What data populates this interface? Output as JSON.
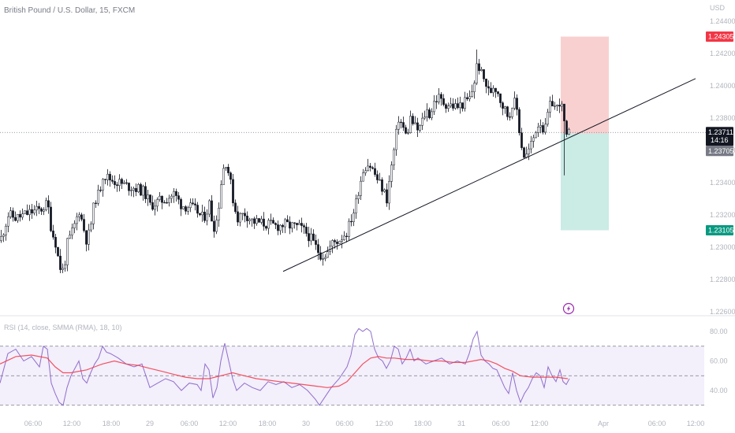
{
  "header": {
    "symbol_title": "British Pound / U.S. Dollar, 15, FXCM",
    "currency": "USD"
  },
  "rsi_header": "RSI (14, close, SMMA (RMA), 18, 10)",
  "price_tags": {
    "stop": "1.24305",
    "last": "1.23711",
    "countdown": "14:16",
    "entry": "1.23705",
    "target": "1.23105"
  },
  "colors": {
    "stop_tag": "#f23645",
    "target_tag": "#089981",
    "last_tag": "#131722",
    "entry_tag": "#787b86",
    "stop_zone": "#f8c8c8",
    "target_zone": "#c2e8e0",
    "rsi_line": "#7e57c2",
    "rsi_ma": "#f23645",
    "rsi_band": "#efeafa",
    "trendline": "#131722",
    "candle": "#131722",
    "axis_text": "#b2b5be",
    "lightning": "#9c27b0"
  },
  "icons": {
    "event": "lightning-icon"
  },
  "chart_data": [
    {
      "type": "candlestick",
      "title": "British Pound / U.S. Dollar, 15, FXCM",
      "ylabel": "USD",
      "ylim": [
        1.226,
        1.2445
      ],
      "y_ticks": [
        "1.24400",
        "1.24200",
        "1.24000",
        "1.23800",
        "1.23600",
        "1.23400",
        "1.23200",
        "1.23000",
        "1.22800",
        "1.22600"
      ],
      "x_ticks": [
        "06:00",
        "12:00",
        "18:00",
        "29",
        "06:00",
        "12:00",
        "18:00",
        "30",
        "06:00",
        "12:00",
        "18:00",
        "31",
        "06:00",
        "12:00",
        "Apr",
        "06:00",
        "12:00"
      ],
      "close_path": [
        [
          0,
          1.2304
        ],
        [
          10,
          1.232
        ],
        [
          20,
          1.2318
        ],
        [
          30,
          1.232
        ],
        [
          40,
          1.2322
        ],
        [
          50,
          1.2323
        ],
        [
          60,
          1.2327
        ],
        [
          65,
          1.231
        ],
        [
          70,
          1.2303
        ],
        [
          75,
          1.2288
        ],
        [
          80,
          1.2285
        ],
        [
          85,
          1.2302
        ],
        [
          90,
          1.2308
        ],
        [
          95,
          1.2315
        ],
        [
          100,
          1.2323
        ],
        [
          110,
          1.2303
        ],
        [
          115,
          1.2315
        ],
        [
          120,
          1.233
        ],
        [
          125,
          1.2333
        ],
        [
          130,
          1.2345
        ],
        [
          140,
          1.2342
        ],
        [
          150,
          1.234
        ],
        [
          160,
          1.2338
        ],
        [
          170,
          1.2337
        ],
        [
          180,
          1.2335
        ],
        [
          185,
          1.2332
        ],
        [
          190,
          1.2326
        ],
        [
          200,
          1.2328
        ],
        [
          210,
          1.233
        ],
        [
          220,
          1.2333
        ],
        [
          230,
          1.2326
        ],
        [
          240,
          1.2325
        ],
        [
          250,
          1.2322
        ],
        [
          255,
          1.2318
        ],
        [
          260,
          1.232
        ],
        [
          265,
          1.2327
        ],
        [
          270,
          1.2312
        ],
        [
          275,
          1.2318
        ],
        [
          280,
          1.234
        ],
        [
          285,
          1.2355
        ],
        [
          290,
          1.2345
        ],
        [
          295,
          1.233
        ],
        [
          300,
          1.2318
        ],
        [
          310,
          1.2321
        ],
        [
          320,
          1.2316
        ],
        [
          330,
          1.2315
        ],
        [
          340,
          1.2314
        ],
        [
          350,
          1.2313
        ],
        [
          360,
          1.2314
        ],
        [
          370,
          1.2313
        ],
        [
          380,
          1.2312
        ],
        [
          390,
          1.2308
        ],
        [
          400,
          1.23
        ],
        [
          405,
          1.2296
        ],
        [
          410,
          1.2295
        ],
        [
          415,
          1.2297
        ],
        [
          420,
          1.2302
        ],
        [
          430,
          1.2305
        ],
        [
          440,
          1.231
        ],
        [
          445,
          1.2318
        ],
        [
          450,
          1.2325
        ],
        [
          455,
          1.2338
        ],
        [
          460,
          1.2348
        ],
        [
          465,
          1.2352
        ],
        [
          470,
          1.235
        ],
        [
          475,
          1.2345
        ],
        [
          480,
          1.234
        ],
        [
          485,
          1.2336
        ],
        [
          490,
          1.233
        ],
        [
          495,
          1.2347
        ],
        [
          500,
          1.2363
        ],
        [
          505,
          1.238
        ],
        [
          510,
          1.2375
        ],
        [
          515,
          1.2368
        ],
        [
          520,
          1.238
        ],
        [
          525,
          1.2375
        ],
        [
          530,
          1.2372
        ],
        [
          535,
          1.2378
        ],
        [
          540,
          1.2385
        ],
        [
          545,
          1.2382
        ],
        [
          550,
          1.239
        ],
        [
          555,
          1.2393
        ],
        [
          560,
          1.239
        ],
        [
          570,
          1.2388
        ],
        [
          580,
          1.2387
        ],
        [
          590,
          1.239
        ],
        [
          595,
          1.2392
        ],
        [
          600,
          1.24
        ],
        [
          605,
          1.2415
        ],
        [
          610,
          1.2407
        ],
        [
          615,
          1.2402
        ],
        [
          620,
          1.2395
        ],
        [
          625,
          1.24
        ],
        [
          630,
          1.2398
        ],
        [
          635,
          1.239
        ],
        [
          640,
          1.2385
        ],
        [
          645,
          1.238
        ],
        [
          650,
          1.2392
        ],
        [
          655,
          1.2385
        ],
        [
          660,
          1.2365
        ],
        [
          665,
          1.2355
        ],
        [
          670,
          1.236
        ],
        [
          675,
          1.2366
        ],
        [
          680,
          1.2375
        ],
        [
          685,
          1.2378
        ],
        [
          690,
          1.237
        ],
        [
          695,
          1.2385
        ],
        [
          700,
          1.239
        ],
        [
          705,
          1.2385
        ],
        [
          710,
          1.2392
        ],
        [
          714,
          1.238
        ],
        [
          718,
          1.2367
        ],
        [
          722,
          1.2371
        ]
      ],
      "spikes": [
        {
          "x": 605,
          "high": 1.24225
        },
        {
          "x": 716,
          "low": 1.23445
        }
      ],
      "trendline": {
        "start": [
          359,
          1.2285
        ],
        "end": [
          882,
          1.24045
        ]
      },
      "last_price": 1.23711,
      "position": {
        "type": "short",
        "entry": 1.23705,
        "stop": 1.24305,
        "target": 1.23105,
        "x_start": 711,
        "x_end": 772
      }
    },
    {
      "type": "line",
      "title": "RSI (14, close, SMMA (RMA), 18, 10)",
      "ylim": [
        25,
        90
      ],
      "y_ticks": [
        "80.00",
        "60.00",
        "40.00"
      ],
      "bands": {
        "upper": 70,
        "middle": 50,
        "lower": 30
      },
      "series": [
        {
          "values": [
            [
              0,
              45
            ],
            [
              10,
              65
            ],
            [
              20,
              68
            ],
            [
              30,
              60
            ],
            [
              40,
              63
            ],
            [
              50,
              56
            ],
            [
              55,
              70
            ],
            [
              60,
              68
            ],
            [
              65,
              45
            ],
            [
              70,
              38
            ],
            [
              75,
              32
            ],
            [
              80,
              30
            ],
            [
              85,
              42
            ],
            [
              90,
              50
            ],
            [
              95,
              55
            ],
            [
              100,
              60
            ],
            [
              105,
              48
            ],
            [
              110,
              45
            ],
            [
              115,
              52
            ],
            [
              120,
              58
            ],
            [
              125,
              62
            ],
            [
              130,
              70
            ],
            [
              135,
              66
            ],
            [
              140,
              65
            ],
            [
              150,
              62
            ],
            [
              160,
              58
            ],
            [
              170,
              56
            ],
            [
              180,
              58
            ],
            [
              190,
              42
            ],
            [
              200,
              45
            ],
            [
              210,
              48
            ],
            [
              220,
              46
            ],
            [
              230,
              40
            ],
            [
              240,
              45
            ],
            [
              250,
              44
            ],
            [
              255,
              40
            ],
            [
              260,
              58
            ],
            [
              265,
              54
            ],
            [
              270,
              35
            ],
            [
              275,
              42
            ],
            [
              280,
              60
            ],
            [
              285,
              72
            ],
            [
              290,
              60
            ],
            [
              295,
              48
            ],
            [
              300,
              40
            ],
            [
              310,
              45
            ],
            [
              320,
              42
            ],
            [
              330,
              40
            ],
            [
              340,
              46
            ],
            [
              350,
              44
            ],
            [
              360,
              46
            ],
            [
              370,
              42
            ],
            [
              380,
              44
            ],
            [
              390,
              40
            ],
            [
              400,
              34
            ],
            [
              405,
              30
            ],
            [
              410,
              34
            ],
            [
              415,
              38
            ],
            [
              420,
              42
            ],
            [
              430,
              48
            ],
            [
              440,
              56
            ],
            [
              445,
              64
            ],
            [
              450,
              78
            ],
            [
              455,
              82
            ],
            [
              460,
              80
            ],
            [
              465,
              82
            ],
            [
              470,
              80
            ],
            [
              475,
              68
            ],
            [
              480,
              62
            ],
            [
              485,
              60
            ],
            [
              490,
              55
            ],
            [
              495,
              60
            ],
            [
              500,
              70
            ],
            [
              505,
              68
            ],
            [
              510,
              58
            ],
            [
              515,
              62
            ],
            [
              520,
              68
            ],
            [
              525,
              60
            ],
            [
              530,
              62
            ],
            [
              535,
              60
            ],
            [
              540,
              58
            ],
            [
              550,
              60
            ],
            [
              560,
              62
            ],
            [
              570,
              58
            ],
            [
              580,
              60
            ],
            [
              590,
              58
            ],
            [
              595,
              65
            ],
            [
              600,
              75
            ],
            [
              605,
              80
            ],
            [
              610,
              64
            ],
            [
              615,
              60
            ],
            [
              620,
              58
            ],
            [
              625,
              55
            ],
            [
              630,
              54
            ],
            [
              635,
              48
            ],
            [
              640,
              42
            ],
            [
              645,
              38
            ],
            [
              650,
              52
            ],
            [
              655,
              40
            ],
            [
              660,
              32
            ],
            [
              665,
              38
            ],
            [
              670,
              42
            ],
            [
              675,
              48
            ],
            [
              680,
              52
            ],
            [
              685,
              50
            ],
            [
              690,
              42
            ],
            [
              695,
              56
            ],
            [
              700,
              50
            ],
            [
              705,
              46
            ],
            [
              710,
              54
            ],
            [
              714,
              46
            ],
            [
              718,
              44
            ],
            [
              722,
              48
            ]
          ]
        },
        {
          "values": [
            [
              0,
              58
            ],
            [
              20,
              63
            ],
            [
              40,
              64
            ],
            [
              60,
              62
            ],
            [
              70,
              56
            ],
            [
              80,
              52
            ],
            [
              90,
              52
            ],
            [
              100,
              53
            ],
            [
              110,
              54
            ],
            [
              120,
              56
            ],
            [
              130,
              58
            ],
            [
              145,
              60
            ],
            [
              160,
              58
            ],
            [
              175,
              57
            ],
            [
              190,
              55
            ],
            [
              205,
              53
            ],
            [
              220,
              51
            ],
            [
              235,
              49
            ],
            [
              250,
              48
            ],
            [
              265,
              48
            ],
            [
              280,
              50
            ],
            [
              295,
              52
            ],
            [
              310,
              50
            ],
            [
              325,
              48
            ],
            [
              340,
              47
            ],
            [
              355,
              46
            ],
            [
              370,
              45
            ],
            [
              385,
              44
            ],
            [
              400,
              43
            ],
            [
              415,
              42
            ],
            [
              430,
              43
            ],
            [
              440,
              46
            ],
            [
              450,
              52
            ],
            [
              460,
              58
            ],
            [
              470,
              62
            ],
            [
              480,
              63
            ],
            [
              490,
              62
            ],
            [
              500,
              62
            ],
            [
              515,
              61
            ],
            [
              530,
              61
            ],
            [
              545,
              60
            ],
            [
              560,
              60
            ],
            [
              575,
              59
            ],
            [
              590,
              59
            ],
            [
              600,
              60
            ],
            [
              610,
              61
            ],
            [
              620,
              60
            ],
            [
              630,
              58
            ],
            [
              640,
              55
            ],
            [
              650,
              53
            ],
            [
              660,
              50
            ],
            [
              675,
              49
            ],
            [
              690,
              49
            ],
            [
              705,
              49
            ],
            [
              720,
              48
            ]
          ]
        }
      ]
    }
  ]
}
